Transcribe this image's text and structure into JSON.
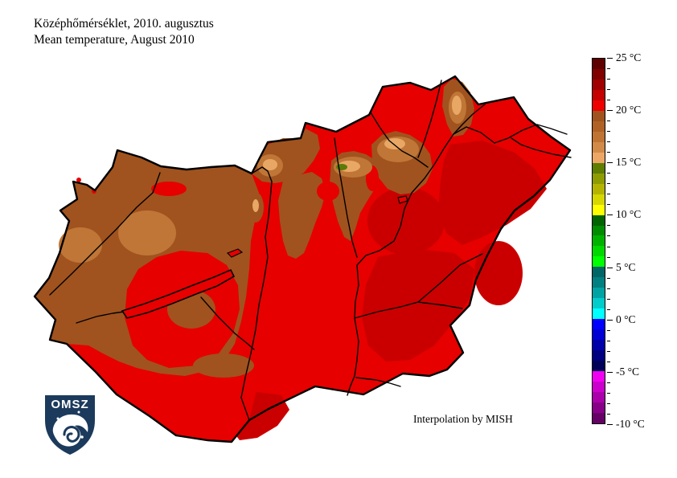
{
  "header": {
    "title_hu": "Középhőmérséklet, 2010. augusztus",
    "title_en": "Mean temperature, August 2010"
  },
  "annotation": {
    "text": "Interpolation by MISH"
  },
  "logo": {
    "label": "OMSZ",
    "shield_color": "#1c3a5c"
  },
  "colorbar": {
    "unit": "°C",
    "min": -10,
    "max": 25,
    "degrees_per_cell": 1,
    "tick_labels_top_to_bottom": [
      "25 °C",
      "20 °C",
      "15 °C",
      "10 °C",
      "5 °C",
      "0 °C",
      "-5 °C",
      "-10 °C"
    ],
    "cell_colors_top_to_bottom": [
      "#5f0000",
      "#800000",
      "#a00000",
      "#c40000",
      "#ee0000",
      "#a0531e",
      "#b06226",
      "#bf7434",
      "#d18a48",
      "#eca767",
      "#5f7d00",
      "#8e9c00",
      "#b4b400",
      "#d6d600",
      "#ffff00",
      "#006400",
      "#008c00",
      "#00b200",
      "#00d800",
      "#00ff00",
      "#006666",
      "#008080",
      "#00a3a3",
      "#00cccc",
      "#00ffff",
      "#0000ff",
      "#0000d4",
      "#0000aa",
      "#000080",
      "#000058",
      "#f000f0",
      "#cc00cc",
      "#aa00aa",
      "#880088",
      "#660066"
    ]
  },
  "map": {
    "region": "Hungary",
    "palette": {
      "red": "#e60000",
      "dark_red": "#ca0000",
      "brown": "#a0531e",
      "light_brown": "#c07636",
      "tan": "#e9a765",
      "olive": "#5c7a08",
      "outline": "#000000",
      "lake_fill": "#e60000"
    }
  }
}
